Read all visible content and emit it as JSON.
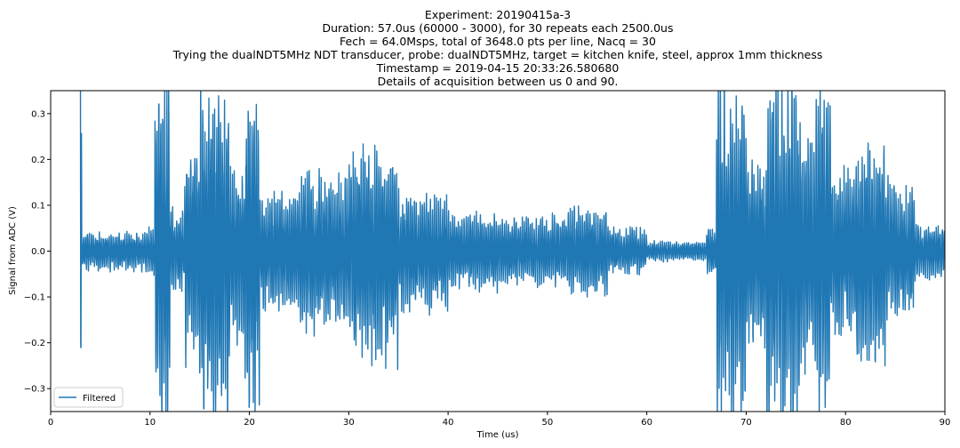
{
  "chart_data": {
    "type": "line",
    "title_lines": [
      "Experiment: 20190415a-3",
      "Duration: 57.0us (60000 - 3000), for 30 repeats each 2500.0us",
      "Fech = 64.0Msps, total of 3648.0 pts per line, Nacq = 30",
      "Trying the dualNDT5MHz NDT transducer, probe: dualNDT5MHz, target = kitchen knife, steel, approx 1mm thickness",
      "Timestamp = 2019-04-15 20:33:26.580680",
      "Details of acquisition between us 0 and 90."
    ],
    "xlabel": "Time (us)",
    "ylabel": "Signal from ADC (V)",
    "xlim": [
      0,
      90
    ],
    "ylim": [
      -0.35,
      0.35
    ],
    "xticks": [
      0,
      10,
      20,
      30,
      40,
      50,
      60,
      70,
      80,
      90
    ],
    "yticks": [
      -0.3,
      -0.2,
      -0.1,
      0.0,
      0.1,
      0.2,
      0.3
    ],
    "ytick_labels": [
      "−0.3",
      "−0.2",
      "−0.1",
      "0.0",
      "0.1",
      "0.2",
      "0.3"
    ],
    "legend": {
      "position": "lower-left",
      "entries": [
        "Filtered"
      ]
    },
    "grid": false,
    "series": [
      {
        "name": "Filtered",
        "color": "#1f77b4",
        "segments": [
          {
            "x_start": 2.9,
            "x_end": 3.1,
            "amplitude": 0.35
          },
          {
            "x_start": 3.1,
            "x_end": 9.5,
            "amplitude": 0.04
          },
          {
            "x_start": 9.5,
            "x_end": 10.5,
            "amplitude": 0.05
          },
          {
            "x_start": 10.5,
            "x_end": 12.0,
            "amplitude": 0.35
          },
          {
            "x_start": 12.0,
            "x_end": 13.5,
            "amplitude": 0.09
          },
          {
            "x_start": 13.5,
            "x_end": 15.0,
            "amplitude": 0.22
          },
          {
            "x_start": 15.0,
            "x_end": 18.0,
            "amplitude": 0.35
          },
          {
            "x_start": 18.0,
            "x_end": 19.5,
            "amplitude": 0.18
          },
          {
            "x_start": 19.5,
            "x_end": 21.0,
            "amplitude": 0.35
          },
          {
            "x_start": 21.0,
            "x_end": 25.0,
            "amplitude": 0.12
          },
          {
            "x_start": 25.0,
            "x_end": 30.0,
            "amplitude": 0.16
          },
          {
            "x_start": 30.0,
            "x_end": 35.0,
            "amplitude": 0.22
          },
          {
            "x_start": 35.0,
            "x_end": 40.0,
            "amplitude": 0.12
          },
          {
            "x_start": 40.0,
            "x_end": 45.0,
            "amplitude": 0.08
          },
          {
            "x_start": 45.0,
            "x_end": 52.0,
            "amplitude": 0.07
          },
          {
            "x_start": 52.0,
            "x_end": 56.0,
            "amplitude": 0.09
          },
          {
            "x_start": 56.0,
            "x_end": 60.0,
            "amplitude": 0.05
          },
          {
            "x_start": 60.0,
            "x_end": 66.0,
            "amplitude": 0.02
          },
          {
            "x_start": 66.0,
            "x_end": 67.0,
            "amplitude": 0.05
          },
          {
            "x_start": 67.0,
            "x_end": 70.0,
            "amplitude": 0.35
          },
          {
            "x_start": 70.0,
            "x_end": 72.0,
            "amplitude": 0.2
          },
          {
            "x_start": 72.0,
            "x_end": 75.5,
            "amplitude": 0.35
          },
          {
            "x_start": 75.5,
            "x_end": 77.0,
            "amplitude": 0.25
          },
          {
            "x_start": 77.0,
            "x_end": 78.5,
            "amplitude": 0.35
          },
          {
            "x_start": 78.5,
            "x_end": 81.0,
            "amplitude": 0.18
          },
          {
            "x_start": 81.0,
            "x_end": 84.0,
            "amplitude": 0.24
          },
          {
            "x_start": 84.0,
            "x_end": 87.0,
            "amplitude": 0.14
          },
          {
            "x_start": 87.0,
            "x_end": 90.0,
            "amplitude": 0.06
          }
        ]
      }
    ]
  }
}
